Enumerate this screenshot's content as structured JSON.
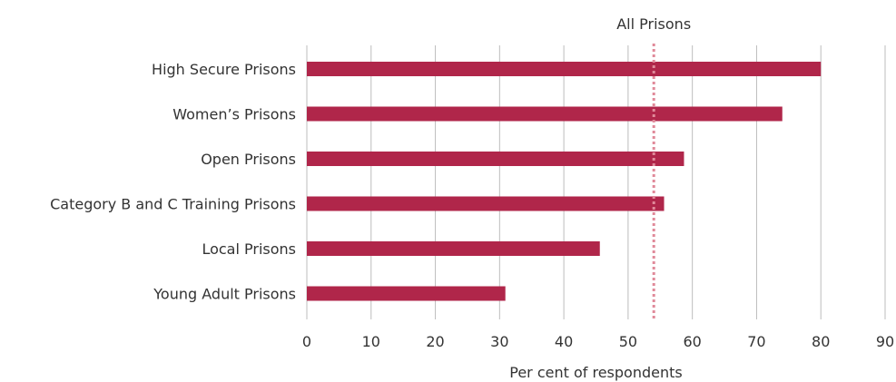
{
  "chart_data": {
    "type": "bar",
    "orientation": "horizontal",
    "categories": [
      "High Secure Prisons",
      "Women’s Prisons",
      "Open Prisons",
      "Category B and C Training Prisons",
      "Local Prisons",
      "Young Adult Prisons"
    ],
    "values": [
      80,
      74,
      58.7,
      55.6,
      45.6,
      30.9
    ],
    "xlabel": "Per cent of respondents",
    "xlim": [
      0,
      90
    ],
    "xticks": [
      0,
      10,
      20,
      30,
      40,
      50,
      60,
      70,
      80,
      90
    ],
    "grid": "vertical",
    "bar_color": "#b0264a",
    "reference_line": {
      "label": "All Prisons",
      "value": 54,
      "style": "dotted",
      "color": "#e08a9a"
    }
  }
}
